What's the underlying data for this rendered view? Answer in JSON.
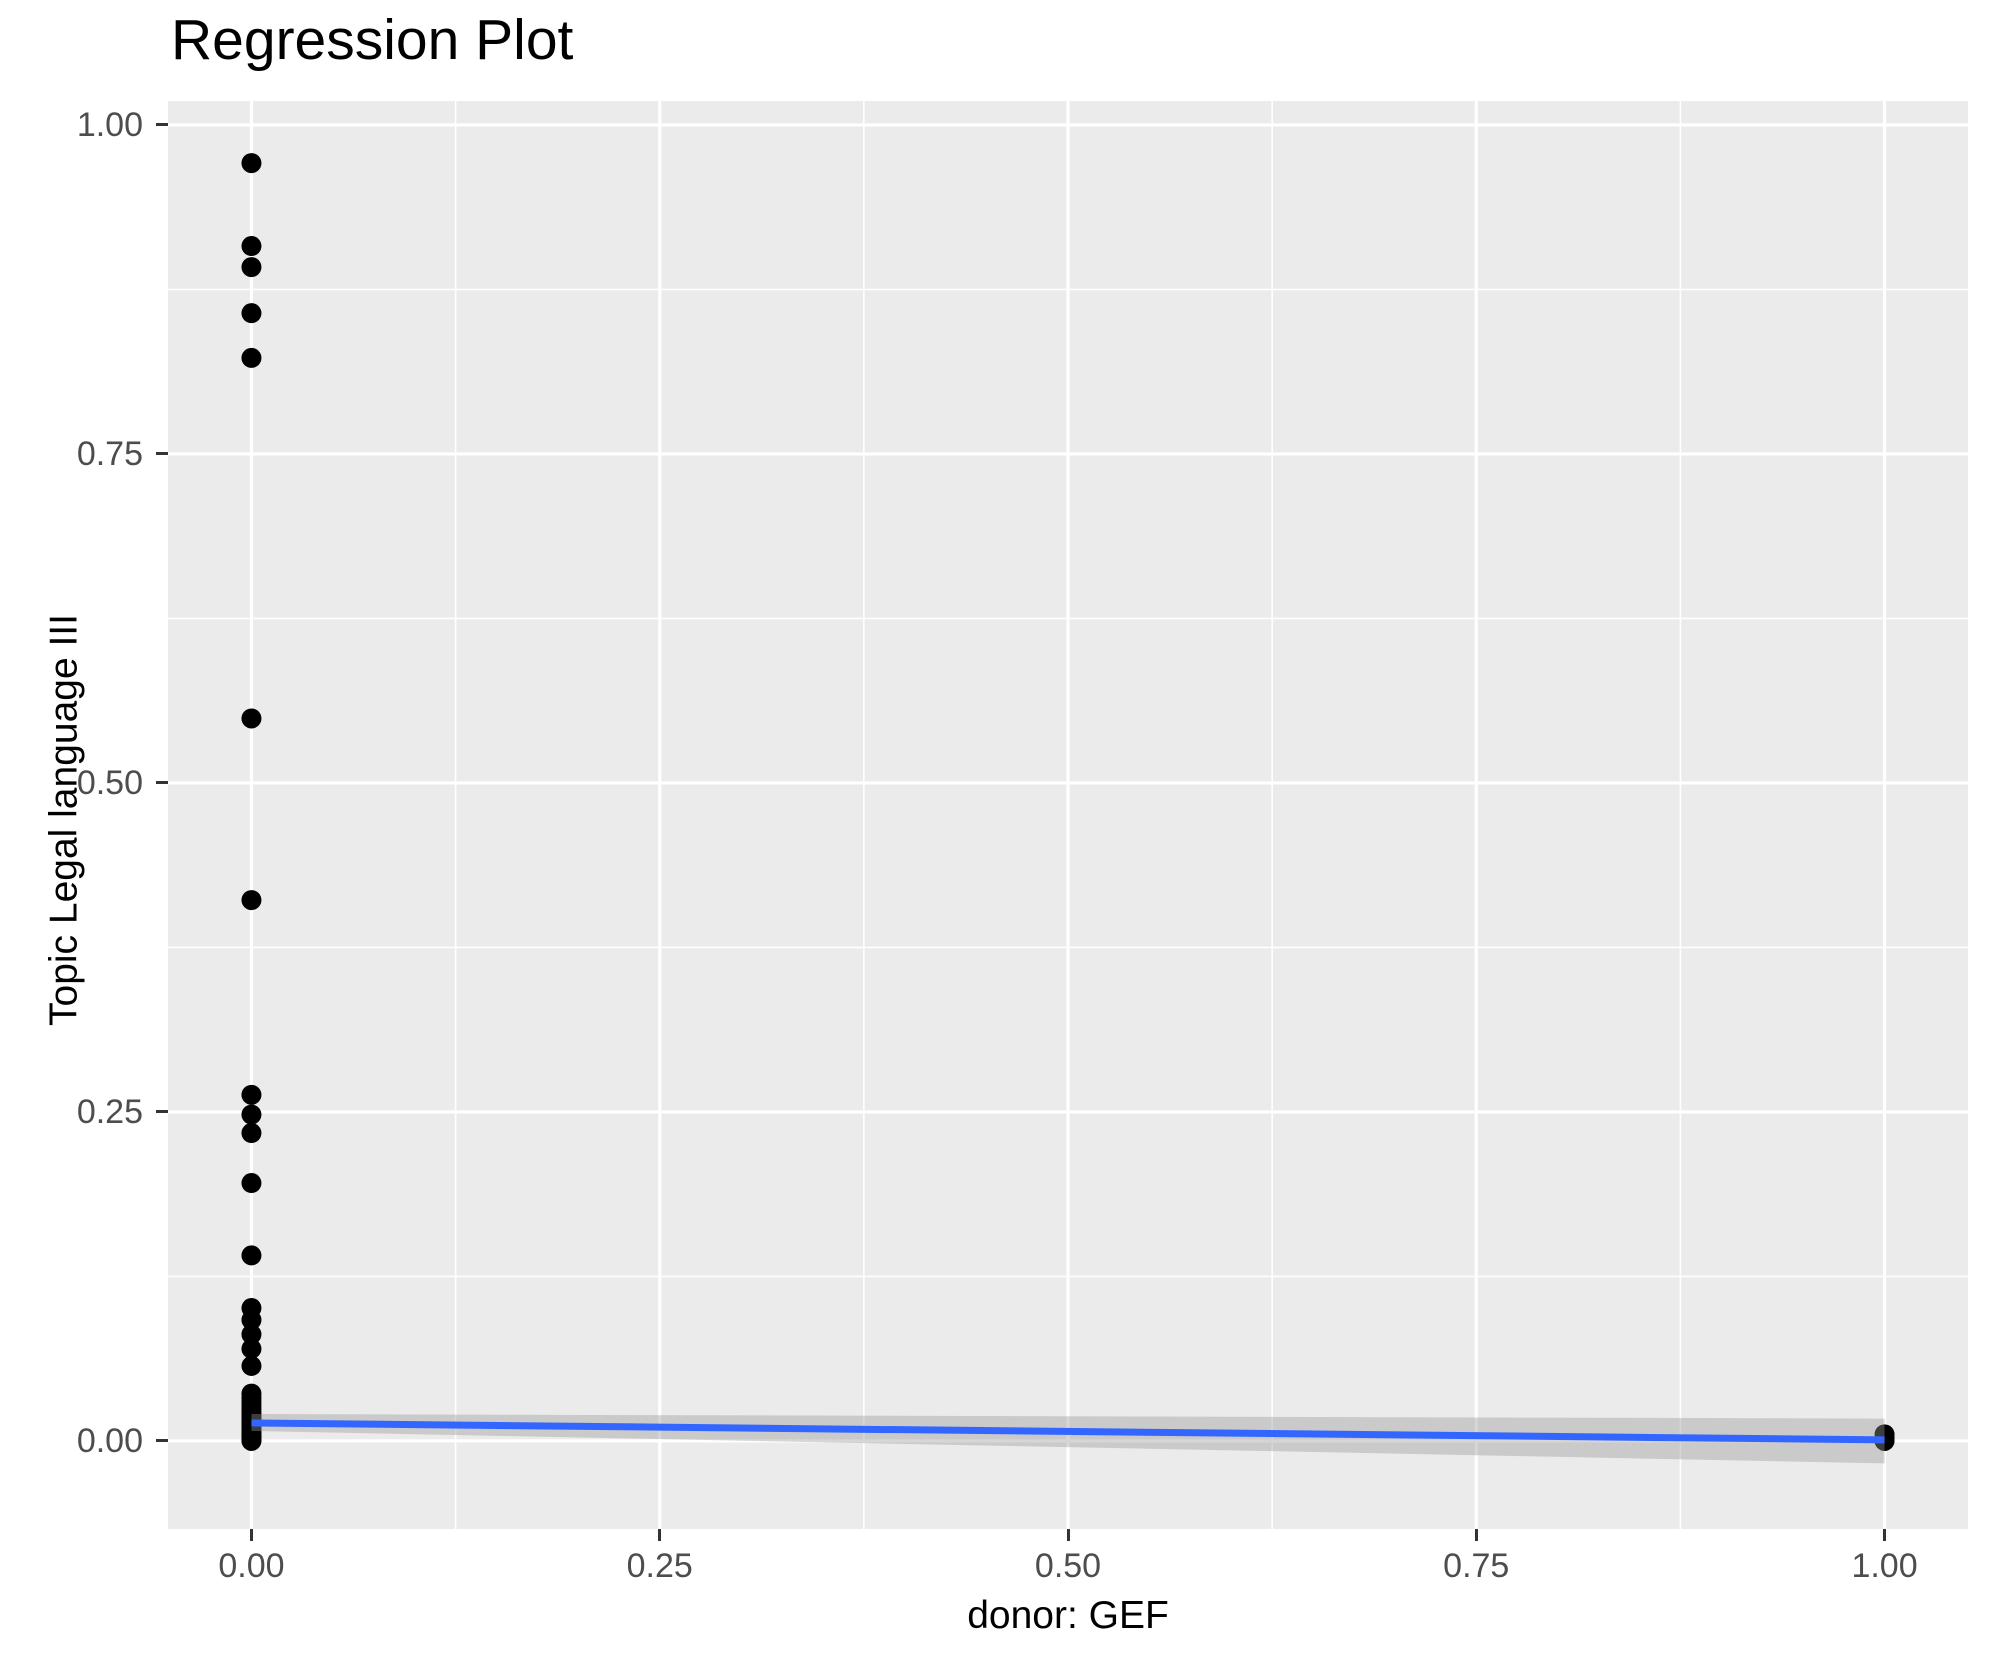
{
  "chart_data": {
    "type": "scatter",
    "title": "Regression Plot",
    "xlabel": "donor: GEF",
    "ylabel": "Topic Legal language III",
    "xlim": [
      -0.0511,
      1.0511
    ],
    "ylim": [
      -0.0669,
      1.0182
    ],
    "grid": true,
    "legend": null,
    "x_ticks": [
      {
        "value": 0.0,
        "label": "0.00"
      },
      {
        "value": 0.25,
        "label": "0.25"
      },
      {
        "value": 0.5,
        "label": "0.50"
      },
      {
        "value": 0.75,
        "label": "0.75"
      },
      {
        "value": 1.0,
        "label": "1.00"
      }
    ],
    "y_ticks": [
      {
        "value": 0.0,
        "label": "0.00"
      },
      {
        "value": 0.25,
        "label": "0.25"
      },
      {
        "value": 0.5,
        "label": "0.50"
      },
      {
        "value": 0.75,
        "label": "0.75"
      },
      {
        "value": 1.0,
        "label": "1.00"
      }
    ],
    "x_minor_ticks": [
      0.125,
      0.375,
      0.625,
      0.875
    ],
    "y_minor_ticks": [
      0.125,
      0.375,
      0.625,
      0.875
    ],
    "points": [
      {
        "x": 0,
        "y": 0.971
      },
      {
        "x": 0,
        "y": 0.908
      },
      {
        "x": 0,
        "y": 0.892
      },
      {
        "x": 0,
        "y": 0.857
      },
      {
        "x": 0,
        "y": 0.823
      },
      {
        "x": 0,
        "y": 0.549
      },
      {
        "x": 0,
        "y": 0.411
      },
      {
        "x": 0,
        "y": 0.263
      },
      {
        "x": 0,
        "y": 0.248
      },
      {
        "x": 0,
        "y": 0.234
      },
      {
        "x": 0,
        "y": 0.196
      },
      {
        "x": 0,
        "y": 0.141
      },
      {
        "x": 0,
        "y": 0.101
      },
      {
        "x": 0,
        "y": 0.092
      },
      {
        "x": 0,
        "y": 0.081
      },
      {
        "x": 0,
        "y": 0.07
      },
      {
        "x": 0,
        "y": 0.057
      },
      {
        "x": 0,
        "y": 0.036
      },
      {
        "x": 0,
        "y": 0.033
      },
      {
        "x": 0,
        "y": 0.03
      },
      {
        "x": 0,
        "y": 0.027
      },
      {
        "x": 0,
        "y": 0.024
      },
      {
        "x": 0,
        "y": 0.021
      },
      {
        "x": 0,
        "y": 0.019
      },
      {
        "x": 0,
        "y": 0.017
      },
      {
        "x": 0,
        "y": 0.015
      },
      {
        "x": 0,
        "y": 0.013
      },
      {
        "x": 0,
        "y": 0.011
      },
      {
        "x": 0,
        "y": 0.009
      },
      {
        "x": 0,
        "y": 0.008
      },
      {
        "x": 0,
        "y": 0.007
      },
      {
        "x": 0,
        "y": 0.006
      },
      {
        "x": 0,
        "y": 0.005
      },
      {
        "x": 0,
        "y": 0.004
      },
      {
        "x": 0,
        "y": 0.003
      },
      {
        "x": 0,
        "y": 0.002
      },
      {
        "x": 0,
        "y": 0.001
      },
      {
        "x": 0,
        "y": 0.0
      },
      {
        "x": 1,
        "y": 0.005
      },
      {
        "x": 1,
        "y": 0.002
      },
      {
        "x": 1,
        "y": 0.0
      }
    ],
    "regression_line": {
      "x0": 0,
      "y0": 0.0137,
      "x1": 1,
      "y1": 0.0008
    },
    "confidence_band": {
      "x0": 0,
      "x0_top": 0.0205,
      "x0_bottom": 0.0076,
      "x1": 1,
      "x1_top": 0.017,
      "x1_bottom": -0.017
    },
    "point_radius_px": 10,
    "colors": {
      "panel_background": "#EBEBEB",
      "gridline": "#FFFFFF",
      "point": "#000000",
      "regression_line": "#3366FF",
      "confidence_band": "rgba(153,153,153,0.4)",
      "axis_text": "#4D4D4D",
      "tick_mark": "#333333",
      "title_text": "#000000"
    }
  }
}
